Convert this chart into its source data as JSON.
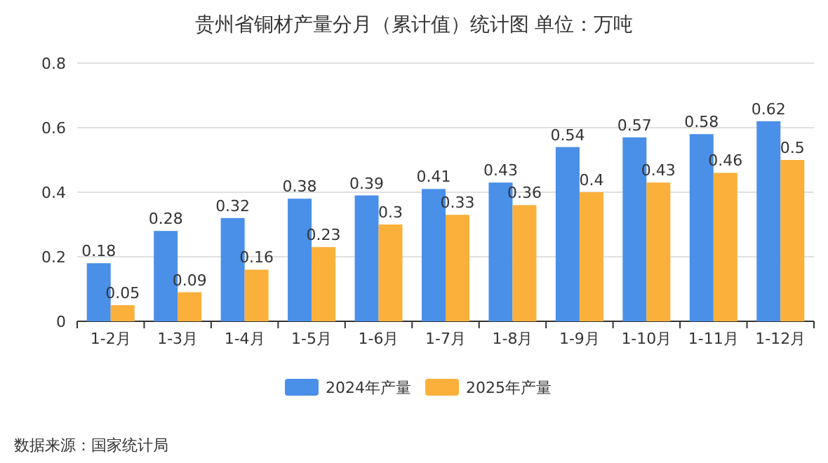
{
  "chart_data": {
    "type": "bar",
    "title": "贵州省铜材产量分月（累计值）统计图 单位：万吨",
    "categories": [
      "1-2月",
      "1-3月",
      "1-4月",
      "1-5月",
      "1-6月",
      "1-7月",
      "1-8月",
      "1-9月",
      "1-10月",
      "1-11月",
      "1-12月"
    ],
    "series": [
      {
        "name": "2024年产量",
        "color": "#4a8fe8",
        "values": [
          0.18,
          0.28,
          0.32,
          0.38,
          0.39,
          0.41,
          0.43,
          0.54,
          0.57,
          0.58,
          0.62
        ]
      },
      {
        "name": "2025年产量",
        "color": "#fbb03b",
        "values": [
          0.05,
          0.09,
          0.16,
          0.23,
          0.3,
          0.33,
          0.36,
          0.4,
          0.43,
          0.46,
          0.5
        ]
      }
    ],
    "ylim": [
      0,
      0.8
    ],
    "yticks": [
      0,
      0.2,
      0.4,
      0.6,
      0.8
    ],
    "grid": "y",
    "legend": "bottom",
    "data_labels": true,
    "annotations": [
      "数据来源：国家统计局"
    ]
  }
}
